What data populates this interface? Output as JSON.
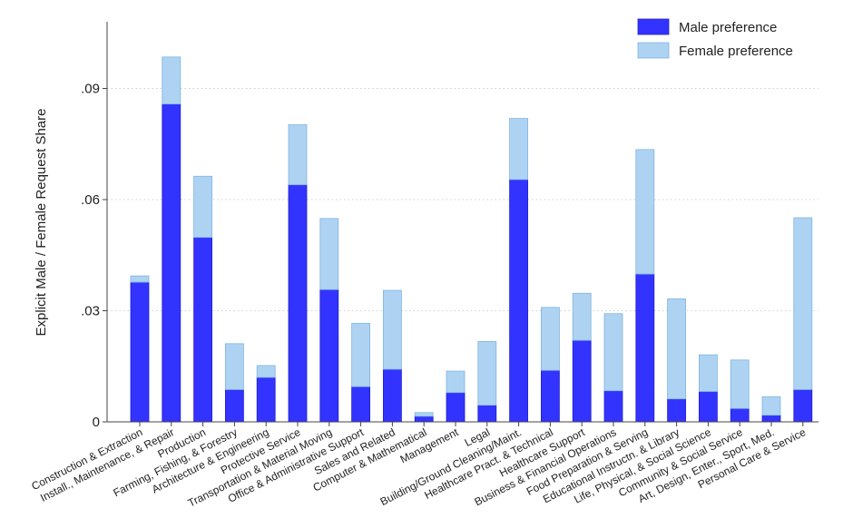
{
  "chart_data": {
    "type": "bar",
    "stacked": true,
    "title": "",
    "xlabel": "",
    "ylabel": "Explicit Male / Female Request Share",
    "ylim": [
      0,
      0.108
    ],
    "yticks": [
      {
        "value": 0,
        "label": "0"
      },
      {
        "value": 0.03,
        "label": ".03"
      },
      {
        "value": 0.06,
        "label": ".06"
      },
      {
        "value": 0.09,
        "label": ".09"
      }
    ],
    "grid": true,
    "legend_position": "top-right",
    "categories": [
      "Construction & Extraction",
      "Install., Maintenance, & Repair",
      "Production",
      "Farming, Fishing, & Forestry",
      "Architecture & Engineering",
      "Protective Service",
      "Transportation & Material Moving",
      "Office & Administrative Support",
      "Sales and Related",
      "Computer & Mathematical",
      "Management",
      "Legal",
      "Building/Ground Cleaning/Maint.",
      "Healthcare Pract. & Technical",
      "Healthcare Support",
      "Business & Financial Operations",
      "Food Preparation & Serving",
      "Educational Instructn. & Library",
      "Life, Physical, & Social Science",
      "Community & Social Service",
      "Art, Design, Enter., Sport, Med.",
      "Personal Care & Service"
    ],
    "series": [
      {
        "name": "Male preference",
        "color": "#3333ff",
        "values": [
          0.0377,
          0.0858,
          0.0498,
          0.0087,
          0.012,
          0.064,
          0.0357,
          0.0095,
          0.0142,
          0.0015,
          0.0079,
          0.0045,
          0.0654,
          0.0139,
          0.022,
          0.0084,
          0.0399,
          0.0062,
          0.0082,
          0.0036,
          0.0018,
          0.0087
        ]
      },
      {
        "name": "Female preference",
        "color": "#aed3f2",
        "values": [
          0.0017,
          0.0127,
          0.0165,
          0.0124,
          0.0032,
          0.0162,
          0.0192,
          0.0171,
          0.0213,
          0.001,
          0.0058,
          0.0172,
          0.0165,
          0.017,
          0.0127,
          0.0208,
          0.0336,
          0.027,
          0.0099,
          0.0131,
          0.005,
          0.0464
        ]
      }
    ]
  }
}
